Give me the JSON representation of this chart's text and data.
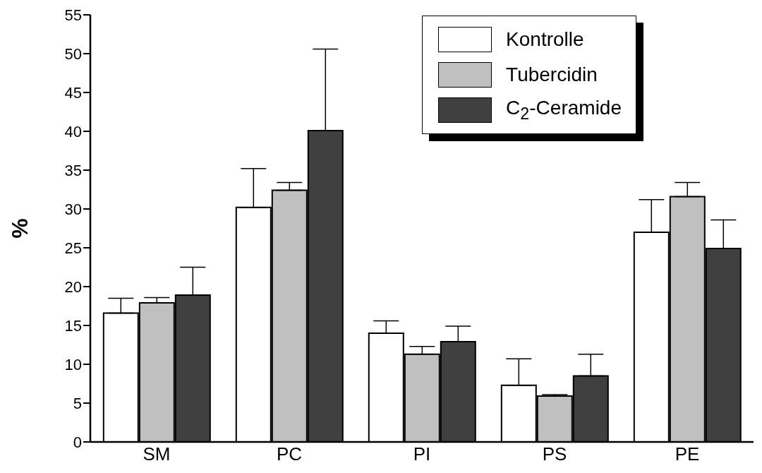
{
  "chart_data": {
    "type": "bar",
    "ylabel": "%",
    "categories": [
      "SM",
      "PC",
      "PI",
      "PS",
      "PE"
    ],
    "series": [
      {
        "name": "Kontrolle",
        "color": "#ffffff",
        "values": [
          16.6,
          30.2,
          14.0,
          7.3,
          27.0
        ],
        "errors": [
          [
            16.6,
            18.5
          ],
          [
            30.2,
            35.2
          ],
          [
            14.0,
            15.6
          ],
          [
            7.3,
            10.7
          ],
          [
            27.0,
            31.2
          ]
        ]
      },
      {
        "name": "Tubercidin",
        "color": "#c0c0c0",
        "values": [
          17.9,
          32.4,
          11.3,
          5.9,
          31.6
        ],
        "errors": [
          [
            17.9,
            18.6
          ],
          [
            32.4,
            33.4
          ],
          [
            11.3,
            12.3
          ],
          [
            5.9,
            6.1
          ],
          [
            31.6,
            33.4
          ]
        ]
      },
      {
        "name": "C$_{2}$-Ceramide",
        "color": "#404040",
        "values": [
          18.9,
          40.1,
          12.9,
          8.5,
          24.9
        ],
        "errors": [
          [
            18.9,
            22.5
          ],
          [
            40.1,
            50.6
          ],
          [
            12.9,
            14.9
          ],
          [
            8.5,
            11.3
          ],
          [
            24.9,
            28.6
          ]
        ]
      }
    ],
    "ylim": [
      0,
      55
    ],
    "yticks": [
      0,
      5,
      10,
      15,
      20,
      25,
      30,
      35,
      40,
      45,
      50,
      55
    ],
    "legend": "top right"
  }
}
